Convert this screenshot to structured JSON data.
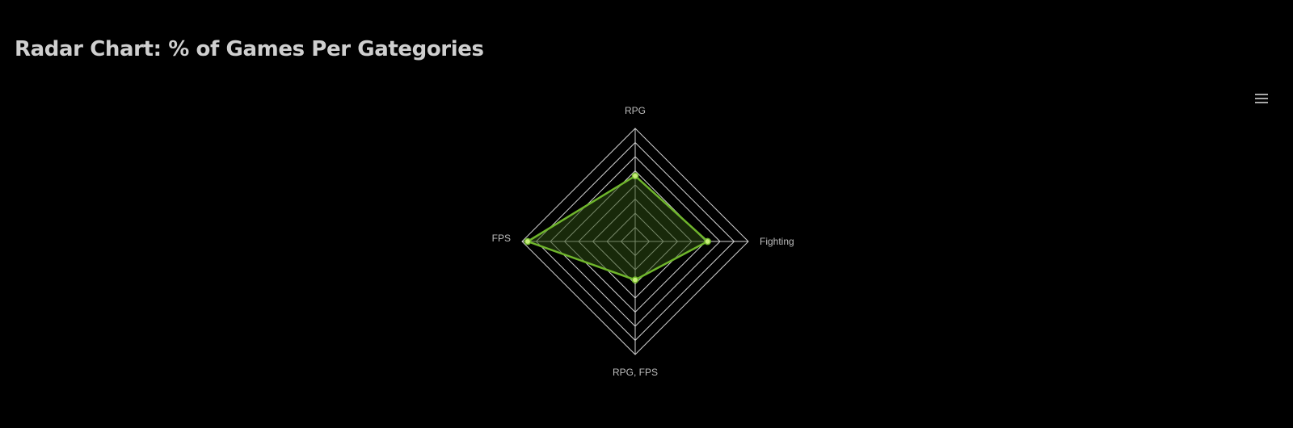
{
  "title": "Radar Chart: % of Games Per Gategories",
  "menu_icon": "hamburger-menu-icon",
  "colors": {
    "background": "#000000",
    "grid": "#d0d0d0",
    "series_stroke": "#6fb52c",
    "series_fill": "#2b4a12",
    "marker_fill": "#c8ee7a",
    "title": "#cfcfcf",
    "label": "#bdbdbd"
  },
  "chart_data": {
    "type": "radar",
    "title": "Radar Chart: % of Games Per Gategories",
    "categories": [
      "RPG",
      "Fighting",
      "RPG, FPS",
      "FPS"
    ],
    "series": [
      {
        "values": [
          0.58,
          0.64,
          0.34,
          0.95
        ]
      }
    ],
    "rlim": [
      0,
      1
    ],
    "grid_levels": 8,
    "grid": true,
    "legend": "none"
  }
}
